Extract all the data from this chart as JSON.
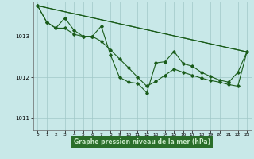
{
  "bg_color": "#c8e8e8",
  "plot_bg_color": "#c8e8e8",
  "grid_color": "#a0c8c8",
  "line_color": "#1a5c1a",
  "marker_color": "#1a5c1a",
  "xlabel": "Graphe pression niveau de la mer (hPa)",
  "xlabel_bg": "#2a6e2a",
  "xlabel_fg": "#c8e8c8",
  "xlim": [
    -0.5,
    23.5
  ],
  "ylim": [
    1010.7,
    1013.85
  ],
  "yticks": [
    1011,
    1012,
    1013
  ],
  "xticks": [
    0,
    1,
    2,
    3,
    4,
    5,
    6,
    7,
    8,
    9,
    10,
    11,
    12,
    13,
    14,
    15,
    16,
    17,
    18,
    19,
    20,
    21,
    22,
    23
  ],
  "series1_x": [
    0,
    1,
    2,
    3,
    4,
    5,
    6,
    7,
    8,
    9,
    10,
    11,
    12,
    13,
    14,
    15,
    16,
    17,
    18,
    19,
    20,
    21,
    22,
    23
  ],
  "series1_y": [
    1013.75,
    1013.35,
    1013.2,
    1013.45,
    1013.15,
    1013.0,
    1013.0,
    1013.25,
    1012.55,
    1012.0,
    1011.88,
    1011.85,
    1011.62,
    1012.35,
    1012.38,
    1012.63,
    1012.33,
    1012.27,
    1012.12,
    1012.02,
    1011.93,
    1011.88,
    1012.12,
    1012.62
  ],
  "series2_x": [
    0,
    23
  ],
  "series2_y": [
    1013.75,
    1012.62
  ],
  "series3_x": [
    0,
    1,
    2,
    3,
    4,
    5,
    6,
    7,
    8,
    9,
    10,
    11,
    12,
    13,
    14,
    15,
    16,
    17,
    18,
    19,
    20,
    21,
    22,
    23
  ],
  "series3_y": [
    1013.75,
    1013.35,
    1013.2,
    1013.2,
    1013.05,
    1013.0,
    1013.0,
    1012.88,
    1012.67,
    1012.45,
    1012.23,
    1012.0,
    1011.78,
    1011.9,
    1012.05,
    1012.2,
    1012.12,
    1012.05,
    1011.98,
    1011.92,
    1011.88,
    1011.82,
    1011.78,
    1012.62
  ],
  "series4_x": [
    0,
    23
  ],
  "series4_y": [
    1013.75,
    1012.62
  ]
}
